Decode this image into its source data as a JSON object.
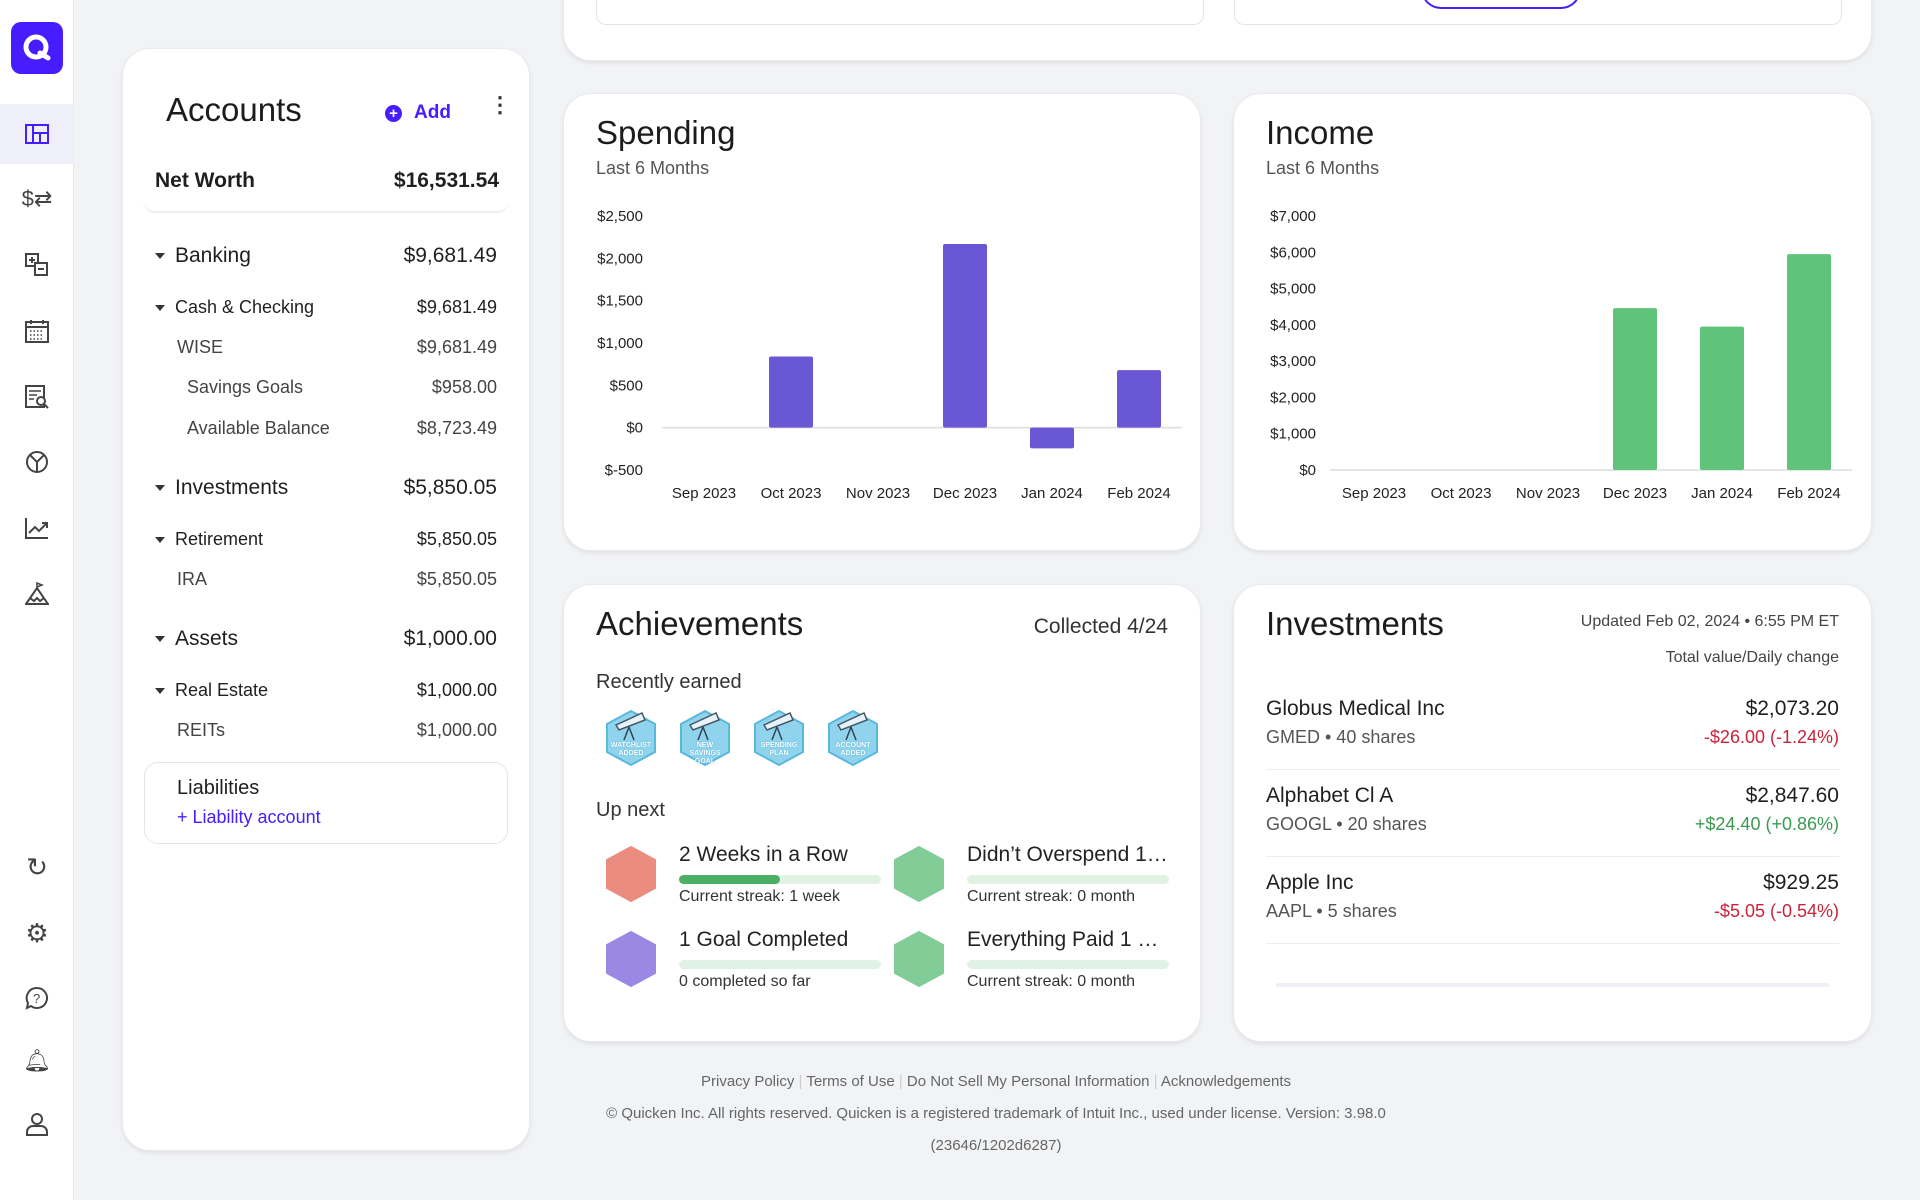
{
  "colors": {
    "brand": "#471cff",
    "spending_bar": "#6a57d5",
    "income_bar": "#5fc37a",
    "negative": "#c8243a",
    "positive": "#3a9a52"
  },
  "sidebar": {
    "items": [
      {
        "icon": "dashboard-icon",
        "active": true
      },
      {
        "icon": "transactions-icon"
      },
      {
        "icon": "spending-plan-icon"
      },
      {
        "icon": "calendar-icon"
      },
      {
        "icon": "reports-icon"
      },
      {
        "icon": "pie-chart-icon"
      },
      {
        "icon": "investments-chart-icon"
      },
      {
        "icon": "goals-mountain-icon"
      }
    ],
    "bottom": [
      {
        "icon": "refresh-icon"
      },
      {
        "icon": "settings-icon"
      },
      {
        "icon": "help-icon"
      },
      {
        "icon": "notifications-bell-icon"
      },
      {
        "icon": "profile-icon"
      }
    ]
  },
  "accounts": {
    "title": "Accounts",
    "add_label": "Add",
    "net_worth_label": "Net Worth",
    "net_worth": "$16,531.54",
    "rows": [
      {
        "label": "Banking",
        "value": "$9,681.49"
      },
      {
        "label": "Cash & Checking",
        "value": "$9,681.49"
      },
      {
        "label": "WISE",
        "value": "$9,681.49"
      },
      {
        "label": "Savings Goals",
        "value": "$958.00"
      },
      {
        "label": "Available Balance",
        "value": "$8,723.49"
      },
      {
        "label": "Investments",
        "value": "$5,850.05"
      },
      {
        "label": "Retirement",
        "value": "$5,850.05"
      },
      {
        "label": "IRA",
        "value": "$5,850.05"
      },
      {
        "label": "Assets",
        "value": "$1,000.00"
      },
      {
        "label": "Real Estate",
        "value": "$1,000.00"
      },
      {
        "label": "REITs",
        "value": "$1,000.00"
      }
    ],
    "liabilities_label": "Liabilities",
    "liability_link": "+ Liability account"
  },
  "spending": {
    "title": "Spending",
    "subtitle": "Last 6 Months"
  },
  "income": {
    "title": "Income",
    "subtitle": "Last 6 Months"
  },
  "chart_data": [
    {
      "type": "bar",
      "title": "Spending",
      "subtitle": "Last 6 Months",
      "categories": [
        "Sep 2023",
        "Oct 2023",
        "Nov 2023",
        "Dec 2023",
        "Jan 2024",
        "Feb 2024"
      ],
      "values": [
        0,
        840,
        0,
        2170,
        -245,
        680
      ],
      "ylim": [
        -500,
        2500
      ],
      "yticks": [
        "$-500",
        "$0",
        "$500",
        "$1,000",
        "$1,500",
        "$2,000",
        "$2,500"
      ],
      "ytick_values": [
        -500,
        0,
        500,
        1000,
        1500,
        2000,
        2500
      ],
      "grid": false,
      "color": "#6a57d5"
    },
    {
      "type": "bar",
      "title": "Income",
      "subtitle": "Last 6 Months",
      "categories": [
        "Sep 2023",
        "Oct 2023",
        "Nov 2023",
        "Dec 2023",
        "Jan 2024",
        "Feb 2024"
      ],
      "values": [
        0,
        0,
        0,
        4460,
        3950,
        5950
      ],
      "ylim": [
        0,
        7000
      ],
      "yticks": [
        "$0",
        "$1,000",
        "$2,000",
        "$3,000",
        "$4,000",
        "$5,000",
        "$6,000",
        "$7,000"
      ],
      "ytick_values": [
        0,
        1000,
        2000,
        3000,
        4000,
        5000,
        6000,
        7000
      ],
      "grid": false,
      "color": "#5fc37a"
    }
  ],
  "achievements": {
    "title": "Achievements",
    "collected": "Collected 4/24",
    "recent_label": "Recently earned",
    "badges": [
      "WATCHLIST ADDED",
      "NEW SAVINGS GOAL",
      "SPENDING PLAN",
      "ACCOUNT ADDED"
    ],
    "upnext_label": "Up next",
    "items": [
      {
        "title": "2 Weeks in a Row",
        "status": "Current streak: 1 week",
        "progress": 0.5,
        "icon": "checklist-2-badge-icon",
        "color": "#e8786a"
      },
      {
        "title": "Didn’t Overspend 1…",
        "status": "Current streak: 0 month",
        "progress": 0,
        "icon": "calculator-badge-icon",
        "color": "#6cc486"
      },
      {
        "title": "1 Goal Completed",
        "status": "0 completed so far",
        "progress": 0,
        "icon": "mountain-goal-badge-icon",
        "color": "#8a74e0"
      },
      {
        "title": "Everything Paid 1 …",
        "status": "Current streak: 0 month",
        "progress": 0,
        "icon": "calendar-badge-icon",
        "color": "#6cc486"
      }
    ]
  },
  "investments": {
    "title": "Investments",
    "updated": "Updated Feb 02, 2024 • 6:55 PM ET",
    "column_label": "Total value/Daily change",
    "holdings": [
      {
        "name": "Globus Medical Inc",
        "detail": "GMED • 40 shares",
        "value": "$2,073.20",
        "change": "-$26.00 (-1.24%)",
        "direction": "down"
      },
      {
        "name": "Alphabet Cl A",
        "detail": "GOOGL • 20 shares",
        "value": "$2,847.60",
        "change": "+$24.40 (+0.86%)",
        "direction": "up"
      },
      {
        "name": "Apple Inc",
        "detail": "AAPL • 5 shares",
        "value": "$929.25",
        "change": "-$5.05 (-0.54%)",
        "direction": "down"
      }
    ]
  },
  "footer": {
    "links": [
      "Privacy Policy",
      "Terms of Use",
      "Do Not Sell My Personal Information",
      "Acknowledgements"
    ],
    "copyright": "© Quicken Inc. All rights reserved. Quicken is a registered trademark of Intuit Inc., used under license. Version: 3.98.0",
    "build": "(23646/1202d6287)"
  }
}
